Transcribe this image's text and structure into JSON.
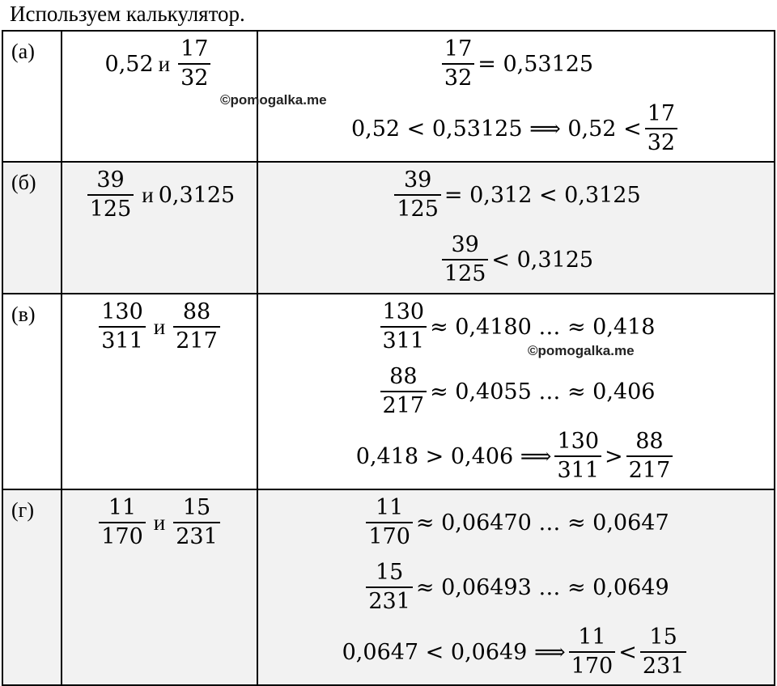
{
  "intro": "Используем калькулятор.",
  "watermark": "©pomogalka.me",
  "and_word": "и",
  "rows": [
    {
      "label": "(а)",
      "left": {
        "a": "0,52",
        "b_num": "17",
        "b_den": "32"
      },
      "lines": [
        {
          "f_num": "17",
          "f_den": "32",
          "rest": "= 0,53125"
        },
        {
          "pre": "0,52 < 0,53125 ⟹ 0,52 <",
          "f_num": "17",
          "f_den": "32"
        }
      ]
    },
    {
      "label": "(б)",
      "left": {
        "a_num": "39",
        "a_den": "125",
        "b": "0,3125"
      },
      "lines": [
        {
          "f_num": "39",
          "f_den": "125",
          "rest": "= 0,312 < 0,3125"
        },
        {
          "f_num": "39",
          "f_den": "125",
          "rest": "< 0,3125"
        }
      ]
    },
    {
      "label": "(в)",
      "left": {
        "a_num": "130",
        "a_den": "311",
        "b_num": "88",
        "b_den": "217"
      },
      "lines": [
        {
          "f_num": "130",
          "f_den": "311",
          "rest": "≈ 0,4180 … ≈ 0,418"
        },
        {
          "f_num": "88",
          "f_den": "217",
          "rest": "≈ 0,4055 … ≈ 0,406"
        },
        {
          "pre": "0,418 > 0,406 ⟹",
          "f_num": "130",
          "f_den": "311",
          "op": ">",
          "g_num": "88",
          "g_den": "217"
        }
      ]
    },
    {
      "label": "(г)",
      "left": {
        "a_num": "11",
        "a_den": "170",
        "b_num": "15",
        "b_den": "231"
      },
      "lines": [
        {
          "f_num": "11",
          "f_den": "170",
          "rest": "≈ 0,06470 … ≈ 0,0647"
        },
        {
          "f_num": "15",
          "f_den": "231",
          "rest": "≈ 0,06493 … ≈ 0,0649"
        },
        {
          "pre": "0,0647 < 0,0649 ⟹",
          "f_num": "11",
          "f_den": "170",
          "op": "<",
          "g_num": "15",
          "g_den": "231"
        }
      ]
    }
  ]
}
